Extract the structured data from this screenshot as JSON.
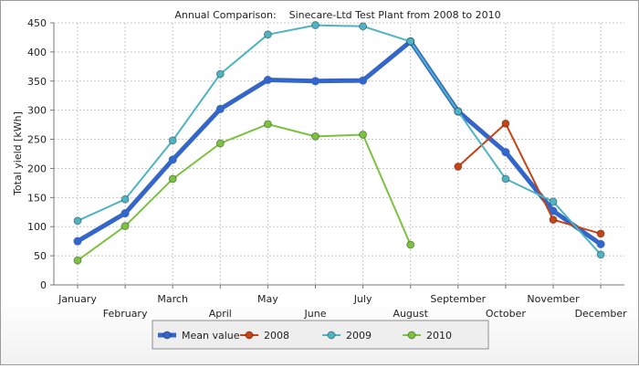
{
  "chart_data": {
    "type": "line",
    "title": "Annual Comparison:    Sinecare-Ltd Test Plant from 2008 to 2010",
    "xlabel": "",
    "ylabel": "Total yield [kWh]",
    "ylim": [
      0,
      450
    ],
    "yticks": [
      0,
      50,
      100,
      150,
      200,
      250,
      300,
      350,
      400,
      450
    ],
    "grid": true,
    "legend_position": "bottom",
    "categories": [
      "January",
      "February",
      "March",
      "April",
      "May",
      "June",
      "July",
      "August",
      "September",
      "October",
      "November",
      "December"
    ],
    "series": [
      {
        "name": "Mean value",
        "color": "#3366c8",
        "values": [
          75,
          123,
          215,
          302,
          352,
          350,
          351,
          418,
          298,
          228,
          127,
          70
        ]
      },
      {
        "name": "2008",
        "color": "#c84314",
        "values": [
          null,
          null,
          null,
          null,
          null,
          null,
          null,
          null,
          203,
          277,
          112,
          88
        ]
      },
      {
        "name": "2009",
        "color": "#4eb3c2",
        "values": [
          110,
          147,
          248,
          362,
          430,
          446,
          444,
          418,
          298,
          182,
          143,
          52
        ]
      },
      {
        "name": "2010",
        "color": "#7bc23f",
        "values": [
          42,
          101,
          182,
          243,
          276,
          255,
          258,
          69,
          null,
          null,
          null,
          null
        ]
      }
    ]
  }
}
